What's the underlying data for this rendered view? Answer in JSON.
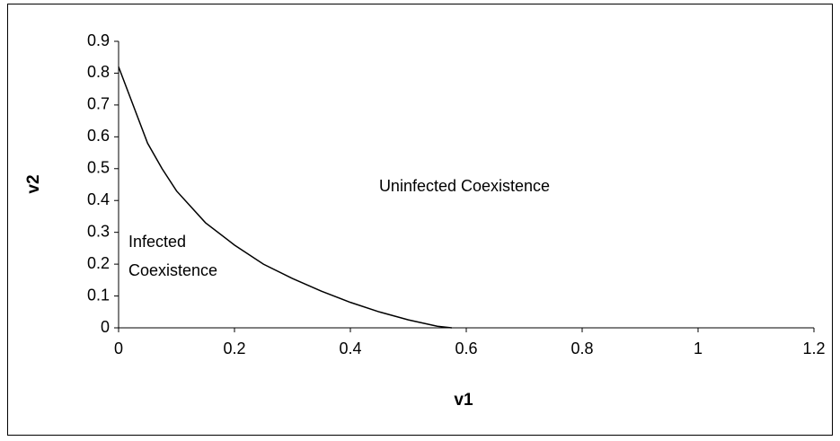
{
  "chart_data": {
    "type": "line",
    "x_label": "v1",
    "y_label": "v2",
    "annotations": [
      "Uninfected Coexistence",
      "Infected",
      "Coexistence"
    ],
    "series": [
      {
        "color": "#000000",
        "x": [
          0,
          0.025,
          0.05,
          0.075,
          0.1,
          0.15,
          0.2,
          0.25,
          0.3,
          0.35,
          0.4,
          0.45,
          0.5,
          0.55,
          0.575
        ],
        "values": [
          0.82,
          0.7,
          0.58,
          0.5,
          0.43,
          0.33,
          0.26,
          0.2,
          0.155,
          0.115,
          0.08,
          0.05,
          0.025,
          0.005,
          0
        ]
      }
    ],
    "xlim": [
      0,
      1.2
    ],
    "xticks": [
      0,
      0.2,
      0.4,
      0.6,
      0.8,
      1,
      1.2
    ],
    "ylim": [
      0,
      0.9
    ],
    "yticks": [
      0,
      0.1,
      0.2,
      0.3,
      0.4,
      0.5,
      0.6,
      0.7,
      0.8,
      0.9
    ],
    "grid": false
  }
}
